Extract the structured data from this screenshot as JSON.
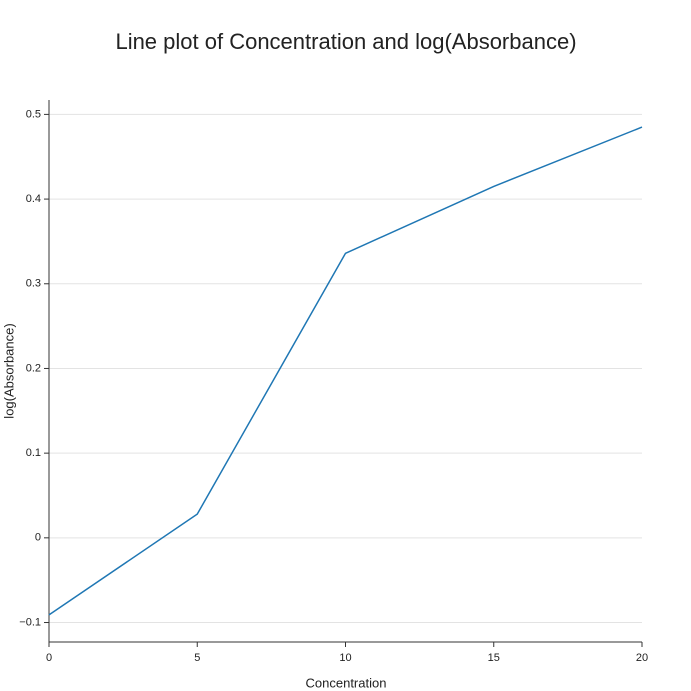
{
  "chart_data": {
    "type": "line",
    "title": "Line plot of Concentration and log(Absorbance)",
    "x_label": "Concentration",
    "y_label": "log(Absorbance)",
    "x": [
      0,
      5,
      10,
      15,
      20
    ],
    "series": [
      {
        "name": "log(Absorbance)",
        "color": "#1f77b4",
        "values": [
          -0.091,
          0.028,
          0.336,
          0.415,
          0.485
        ]
      }
    ],
    "xlim": [
      0,
      20
    ],
    "xticks": [
      0,
      5,
      10,
      15,
      20
    ],
    "ylim": [
      -0.123,
      0.517
    ],
    "yticks": [
      {
        "value": -0.1,
        "label": "−0.1"
      },
      0,
      0.1,
      0.2,
      0.3,
      0.4,
      0.5
    ],
    "grid": true
  }
}
